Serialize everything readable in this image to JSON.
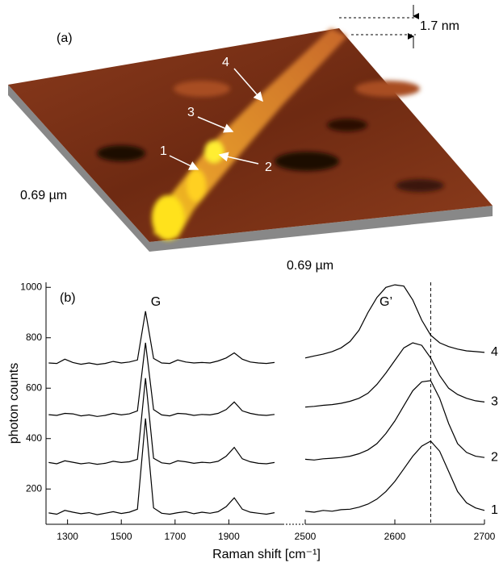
{
  "afm_image": {
    "label": "(a)",
    "height_scale": "1.7 nm",
    "width_label": "0.69 µm",
    "depth_label": "0.69 µm",
    "markers": [
      "1",
      "2",
      "3",
      "4"
    ]
  },
  "chart_data": [
    {
      "type": "line",
      "panel_label": "(b)",
      "annotation": "G",
      "y_label": "photon counts",
      "x_label": "Raman shift [cm⁻¹]",
      "x": [
        1230,
        1260,
        1290,
        1320,
        1350,
        1380,
        1410,
        1440,
        1470,
        1500,
        1530,
        1560,
        1590,
        1620,
        1650,
        1680,
        1710,
        1740,
        1770,
        1800,
        1830,
        1860,
        1890,
        1920,
        1950,
        1980,
        2010,
        2040,
        2070
      ],
      "xlim": [
        1220,
        2100
      ],
      "xticks": [
        1300,
        1500,
        1700,
        1900
      ],
      "ylim": [
        60,
        1020
      ],
      "yticks": [
        200,
        400,
        600,
        800,
        1000
      ],
      "series": [
        {
          "color": "#000000",
          "values": [
            105,
            100,
            115,
            108,
            102,
            106,
            98,
            104,
            110,
            103,
            108,
            120,
            480,
            125,
            104,
            100,
            106,
            110,
            102,
            108,
            104,
            110,
            130,
            165,
            120,
            108,
            104,
            100,
            106
          ]
        },
        {
          "color": "#000000",
          "values": [
            305,
            300,
            312,
            306,
            300,
            304,
            298,
            302,
            310,
            305,
            308,
            318,
            640,
            322,
            304,
            300,
            312,
            308,
            302,
            306,
            304,
            310,
            330,
            365,
            320,
            308,
            302,
            300,
            305
          ]
        },
        {
          "color": "#000000",
          "values": [
            495,
            492,
            500,
            498,
            490,
            494,
            488,
            492,
            500,
            494,
            498,
            510,
            780,
            515,
            494,
            490,
            500,
            498,
            492,
            496,
            494,
            500,
            515,
            545,
            510,
            500,
            494,
            492,
            496
          ]
        },
        {
          "color": "#000000",
          "values": [
            700,
            698,
            715,
            702,
            695,
            700,
            694,
            698,
            706,
            700,
            704,
            712,
            905,
            718,
            700,
            698,
            712,
            704,
            700,
            702,
            700,
            708,
            720,
            740,
            715,
            704,
            700,
            698,
            702
          ]
        }
      ]
    },
    {
      "type": "line",
      "annotation": "G’",
      "marker_x": 2640,
      "x": [
        2500,
        2510,
        2520,
        2530,
        2540,
        2550,
        2560,
        2570,
        2580,
        2590,
        2600,
        2610,
        2620,
        2630,
        2640,
        2650,
        2660,
        2670,
        2680,
        2690,
        2700
      ],
      "xlim": [
        2500,
        2700
      ],
      "xticks": [
        2500,
        2600,
        2700
      ],
      "ylim": [
        60,
        1020
      ],
      "series": [
        {
          "name": "1",
          "color": "#000000",
          "values": [
            112,
            108,
            115,
            112,
            118,
            120,
            128,
            140,
            160,
            190,
            230,
            280,
            330,
            370,
            390,
            350,
            270,
            190,
            145,
            125,
            115
          ]
        },
        {
          "name": "2",
          "color": "#000000",
          "values": [
            318,
            315,
            320,
            322,
            325,
            330,
            340,
            355,
            380,
            420,
            470,
            530,
            590,
            625,
            630,
            560,
            460,
            380,
            345,
            330,
            325
          ]
        },
        {
          "name": "3",
          "color": "#000000",
          "values": [
            525,
            528,
            532,
            535,
            540,
            548,
            560,
            580,
            615,
            660,
            710,
            760,
            780,
            770,
            720,
            650,
            600,
            575,
            560,
            550,
            545
          ]
        },
        {
          "name": "4",
          "color": "#000000",
          "values": [
            720,
            728,
            735,
            745,
            760,
            785,
            830,
            900,
            960,
            1000,
            1010,
            1005,
            950,
            870,
            810,
            780,
            765,
            755,
            748,
            745,
            742
          ]
        }
      ]
    }
  ]
}
